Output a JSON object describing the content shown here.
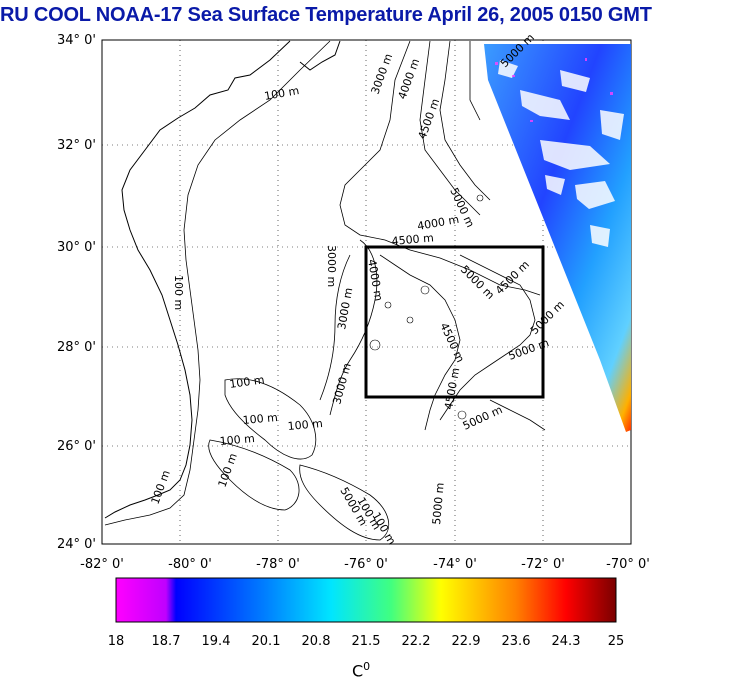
{
  "title": "RU COOL  NOAA-17 Sea Surface Temperature April 26, 2005 0150 GMT",
  "lat_labels": [
    "34° 0'",
    "32° 0'",
    "30° 0'",
    "28° 0'",
    "26° 0'",
    "24° 0'"
  ],
  "lon_labels": [
    "-82° 0'",
    "-80° 0'",
    "-78° 0'",
    "-76° 0'",
    "-74° 0'",
    "-72° 0'",
    "-70° 0'"
  ],
  "contour_labels": [
    {
      "text": "100 m"
    },
    {
      "text": "100 m"
    },
    {
      "text": "100 m"
    },
    {
      "text": "100 m"
    },
    {
      "text": "100 m"
    },
    {
      "text": "100 m"
    },
    {
      "text": "100 m"
    },
    {
      "text": "100 m"
    },
    {
      "text": "3000 m"
    },
    {
      "text": "4000 m"
    },
    {
      "text": "4500 m"
    },
    {
      "text": "5000 m"
    },
    {
      "text": "5000 m"
    },
    {
      "text": "4000 m"
    },
    {
      "text": "4500 m"
    },
    {
      "text": "3000 m"
    },
    {
      "text": "5000 m"
    },
    {
      "text": "4500 m"
    },
    {
      "text": "4500 m"
    },
    {
      "text": "5000 m"
    },
    {
      "text": "5000 m"
    },
    {
      "text": "4000 m"
    },
    {
      "text": "3000 m"
    },
    {
      "text": "3000 m"
    },
    {
      "text": "4500 m"
    },
    {
      "text": "5000 m"
    },
    {
      "text": "5000 m"
    },
    {
      "text": "100 m"
    },
    {
      "text": "100 m"
    },
    {
      "text": "5000 m"
    }
  ],
  "colorbar": {
    "ticks": [
      "18",
      "18.7",
      "19.4",
      "20.1",
      "20.8",
      "21.5",
      "22.2",
      "22.9",
      "23.6",
      "24.3",
      "25"
    ],
    "unit_label": "C",
    "unit_sup": "0",
    "colors": [
      "#ff00ff",
      "#0000ff",
      "#00e5ff",
      "#ffff00",
      "#ff0000",
      "#7a0000"
    ]
  },
  "study_box": {
    "lon": [
      -76,
      -72
    ],
    "lat": [
      27,
      30
    ]
  }
}
